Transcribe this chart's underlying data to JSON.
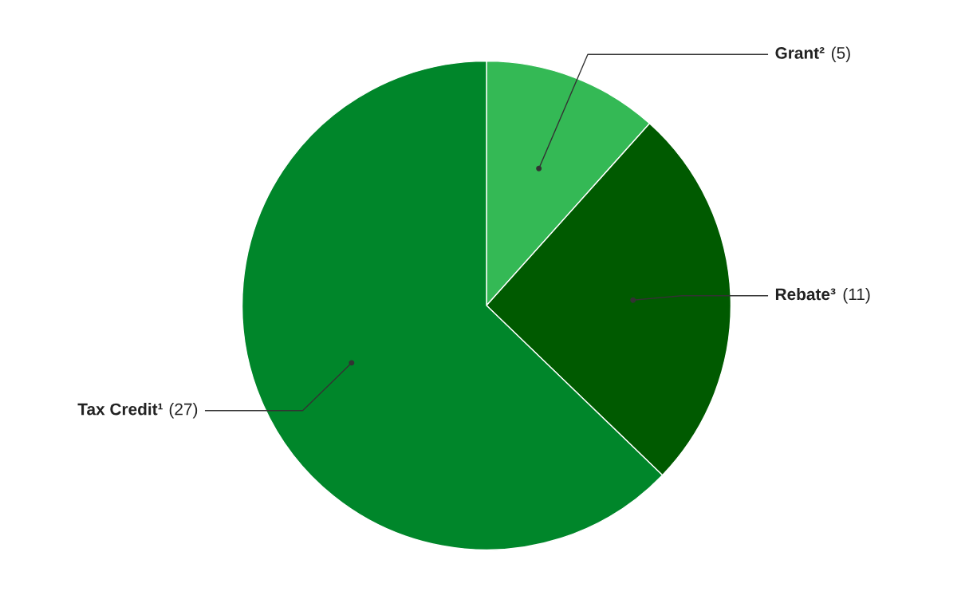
{
  "chart_data": {
    "type": "pie",
    "categories": [
      "Grant²",
      "Rebate³",
      "Tax Credit¹"
    ],
    "values": [
      5,
      11,
      27
    ],
    "colors": [
      "#34b955",
      "#005a00",
      "#00862a"
    ],
    "value_labels": [
      "(5)",
      "(11)",
      "(27)"
    ]
  }
}
